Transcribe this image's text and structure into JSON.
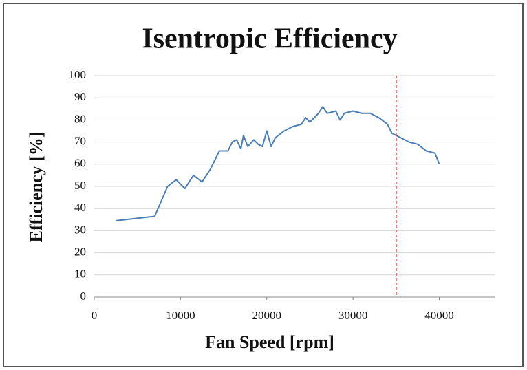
{
  "chart_data": {
    "type": "line",
    "title": "Isentropic Efficiency",
    "x_label": "Fan Speed [rpm]",
    "y_label": "Efficiency [%]",
    "x": [
      2500,
      7000,
      8500,
      9500,
      10500,
      11500,
      12500,
      13500,
      14500,
      15500,
      16000,
      16500,
      17000,
      17300,
      17800,
      18500,
      19000,
      19500,
      20000,
      20500,
      21000,
      22000,
      23000,
      24000,
      24500,
      25000,
      26000,
      26500,
      27000,
      28000,
      28500,
      29000,
      30000,
      31000,
      32000,
      33000,
      34000,
      34500,
      35500,
      36500,
      37500,
      38500,
      39500,
      40000
    ],
    "values": [
      34.5,
      36.5,
      50,
      53,
      49,
      55,
      52,
      58,
      66,
      66,
      70,
      71,
      67,
      73,
      68,
      71,
      69,
      68,
      75,
      68,
      72,
      75,
      77,
      78,
      81,
      79,
      83,
      86,
      83,
      84,
      80,
      83,
      84,
      83,
      83,
      81,
      78,
      74,
      72,
      70,
      69,
      66,
      65,
      60
    ],
    "color": "#4a7eb8",
    "xlim": [
      0,
      46500
    ],
    "xticks": [
      0,
      10000,
      20000,
      30000,
      40000
    ],
    "ylim": [
      0,
      100
    ],
    "yticks": [
      0,
      10,
      20,
      30,
      40,
      50,
      60,
      70,
      80,
      90,
      100
    ],
    "grid": true,
    "reference_line": {
      "x": 35000,
      "color": "#d9202a"
    }
  }
}
